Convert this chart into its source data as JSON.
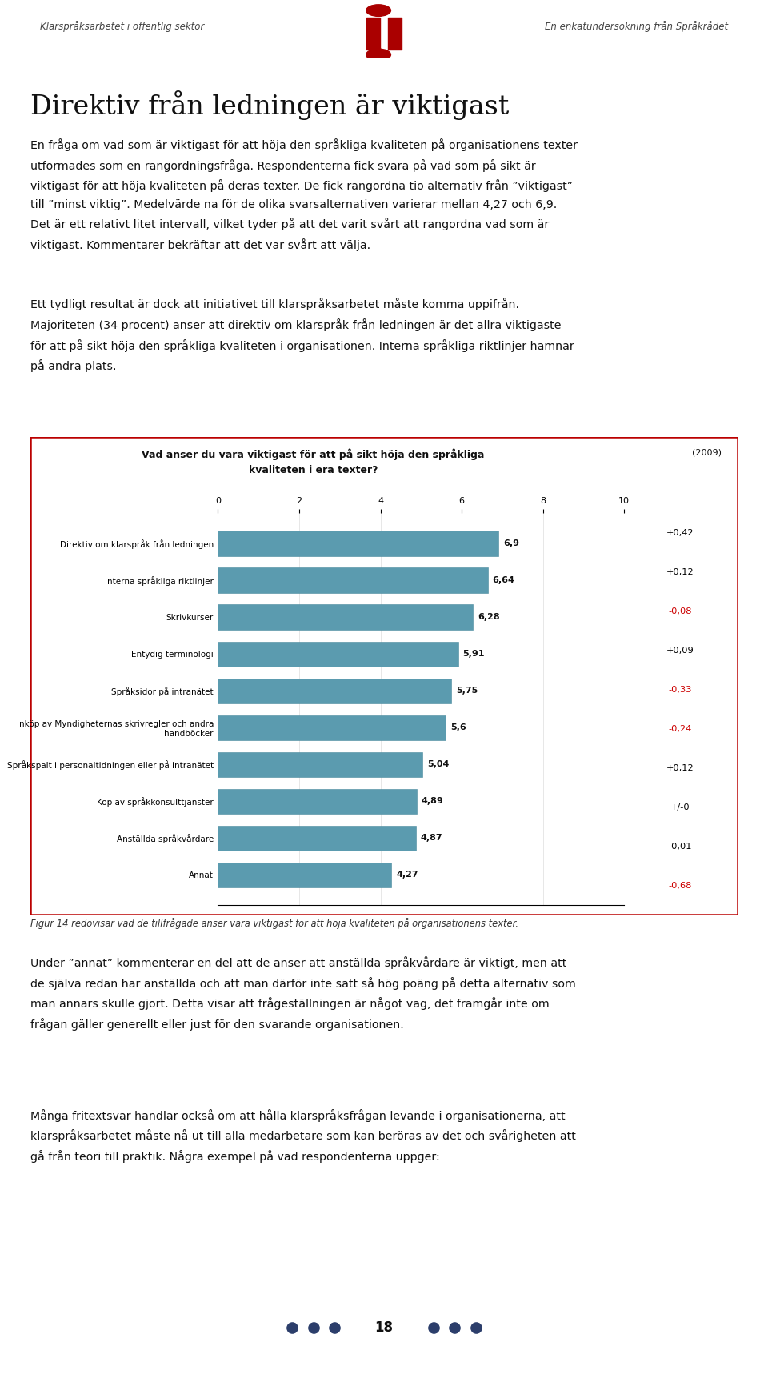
{
  "header_left": "Klarspråksarbetet i offentlig sektor",
  "header_right": "En enkätundersökning från Språkrådet",
  "page_title": "Direktiv från ledningen är viktigast",
  "chart_title_line1": "Vad anser du vara viktigast för att på sikt höja den språkliga",
  "chart_title_line2": "kvaliteten i era texter?",
  "chart_year_label": "(2009)",
  "categories": [
    "Direktiv om klarspråk från ledningen",
    "Interna språkliga riktlinjer",
    "Skrivkurser",
    "Entydig terminologi",
    "Språksidor på intranätet",
    "Inköp av Myndigheternas skrivregler och andra\nhandböcker",
    "Språkspalt i personaltidningen eller på intranätet",
    "Köp av språkkonsulttjänster",
    "Anställda språkvårdare",
    "Annat"
  ],
  "values": [
    6.9,
    6.64,
    6.28,
    5.91,
    5.75,
    5.6,
    5.04,
    4.89,
    4.87,
    4.27
  ],
  "value_labels": [
    "6,9",
    "6,64",
    "6,28",
    "5,91",
    "5,75",
    "5,6",
    "5,04",
    "4,89",
    "4,87",
    "4,27"
  ],
  "changes": [
    "+0,42",
    "+0,12",
    "-0,08",
    "+0,09",
    "-0,33",
    "-0,24",
    "+0,12",
    "+/-0",
    "-0,01",
    "-0,68"
  ],
  "change_colors": [
    "#000000",
    "#000000",
    "#cc0000",
    "#000000",
    "#cc0000",
    "#cc0000",
    "#000000",
    "#000000",
    "#000000",
    "#cc0000"
  ],
  "bar_color": "#5b9baf",
  "chart_border_color": "#cc0000",
  "xticks": [
    0,
    2,
    4,
    6,
    8,
    10
  ],
  "figsize": [
    9.6,
    17.32
  ],
  "caption": "Figur 14 redovisar vad de tillfrågade anser vara viktigast för att höja kvaliteten på organisationens texter.",
  "page_number": "18",
  "dot_color": "#2c3e6b",
  "logo_color": "#aa0000"
}
